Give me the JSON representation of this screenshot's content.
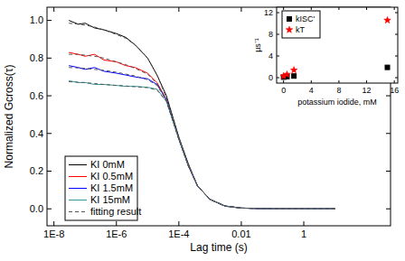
{
  "chart_data": [
    {
      "type": "line",
      "x_label": "Lag time (s)",
      "y_label": "Normalized Gcross(τ)",
      "log": "x",
      "grid": false,
      "legend": "lower left",
      "x": [
        3e-08,
        6e-08,
        1e-07,
        2e-07,
        4e-07,
        1e-06,
        2e-06,
        4e-06,
        1e-05,
        2e-05,
        4e-05,
        0.0001,
        0.0002,
        0.0004,
        0.001,
        0.003,
        0.01,
        0.1,
        1,
        10
      ],
      "xlim": [
        6e-09,
        600
      ],
      "xticks": [
        {
          "value": 1e-08,
          "label": "1E-8"
        },
        {
          "value": 1e-06,
          "label": "1E-6"
        },
        {
          "value": 0.0001,
          "label": "1E-4"
        },
        0.01,
        1
      ],
      "ylim": [
        -0.09,
        1.07
      ],
      "yticks": [
        {
          "value": 0,
          "label": "0.0"
        },
        {
          "value": 0.2,
          "label": "0.2"
        },
        {
          "value": 0.4,
          "label": "0.4"
        },
        {
          "value": 0.6,
          "label": "0.6"
        },
        {
          "value": 0.8,
          "label": "0.8"
        },
        {
          "value": 1,
          "label": "1.0"
        }
      ],
      "series": [
        {
          "name": "KI 0mM",
          "color": "#000000",
          "line_style": "solid",
          "values": [
            1.0,
            0.98,
            0.985,
            0.96,
            0.95,
            0.93,
            0.91,
            0.87,
            0.8,
            0.71,
            0.6,
            0.38,
            0.24,
            0.12,
            0.05,
            0.015,
            0.004,
            0,
            0,
            0
          ]
        },
        {
          "name": "KI 0.5mM",
          "color": "#ff0000",
          "line_style": "solid",
          "values": [
            0.83,
            0.82,
            0.81,
            0.82,
            0.79,
            0.78,
            0.76,
            0.75,
            0.72,
            0.67,
            0.58,
            0.37,
            0.23,
            0.12,
            0.05,
            0.015,
            0.004,
            0,
            0,
            0
          ]
        },
        {
          "name": "KI 1.5mM",
          "color": "#0000ff",
          "line_style": "solid",
          "values": [
            0.76,
            0.75,
            0.74,
            0.75,
            0.73,
            0.72,
            0.71,
            0.7,
            0.69,
            0.66,
            0.58,
            0.37,
            0.23,
            0.12,
            0.05,
            0.015,
            0.004,
            0,
            0,
            0
          ]
        },
        {
          "name": "KI 15mM",
          "color": "#339999",
          "line_style": "solid",
          "values": [
            0.68,
            0.67,
            0.67,
            0.66,
            0.66,
            0.655,
            0.65,
            0.65,
            0.645,
            0.635,
            0.57,
            0.37,
            0.23,
            0.12,
            0.05,
            0.015,
            0.004,
            0,
            0,
            0
          ]
        },
        {
          "name": "fitting result",
          "color": "#555555",
          "line_style": "dashed",
          "values": [
            0.985,
            0.98,
            0.975,
            0.965,
            0.95,
            0.925,
            0.905,
            0.87,
            0.8,
            0.71,
            0.59,
            0.38,
            0.23,
            0.12,
            0.05,
            0.014,
            0.004,
            0,
            0,
            0
          ]
        },
        {
          "name": "fitting result",
          "color": "#555555",
          "line_style": "dashed",
          "values": [
            0.82,
            0.82,
            0.815,
            0.81,
            0.8,
            0.78,
            0.765,
            0.745,
            0.715,
            0.665,
            0.575,
            0.37,
            0.23,
            0.12,
            0.05,
            0.014,
            0.004,
            0,
            0,
            0
          ]
        },
        {
          "name": "fitting result",
          "color": "#555555",
          "line_style": "dashed",
          "values": [
            0.75,
            0.748,
            0.745,
            0.74,
            0.735,
            0.725,
            0.715,
            0.705,
            0.685,
            0.655,
            0.575,
            0.37,
            0.23,
            0.12,
            0.05,
            0.014,
            0.004,
            0,
            0,
            0
          ]
        },
        {
          "name": "fitting result",
          "color": "#555555",
          "line_style": "dashed",
          "values": [
            0.675,
            0.672,
            0.67,
            0.665,
            0.66,
            0.655,
            0.652,
            0.648,
            0.643,
            0.63,
            0.57,
            0.37,
            0.23,
            0.12,
            0.05,
            0.014,
            0.004,
            0,
            0,
            0
          ]
        }
      ]
    },
    {
      "type": "scatter",
      "x_label": "potassium iodide, mM",
      "y_label": "μs⁻¹",
      "grid": false,
      "legend": "upper left",
      "x": [
        0,
        0.5,
        1.5,
        15
      ],
      "xlim": [
        -1,
        16.5
      ],
      "xticks": [
        0,
        4,
        8,
        12,
        16
      ],
      "ylim": [
        -1,
        13
      ],
      "yticks": [
        0,
        4,
        8,
        12
      ],
      "series": [
        {
          "name": "kISC'",
          "color": "#000000",
          "marker": "square",
          "values": [
            0.1,
            0.2,
            0.3,
            1.9
          ]
        },
        {
          "name": "kT",
          "color": "#ff0000",
          "marker": "star",
          "values": [
            0.3,
            0.6,
            1.4,
            10.6
          ]
        }
      ]
    }
  ]
}
